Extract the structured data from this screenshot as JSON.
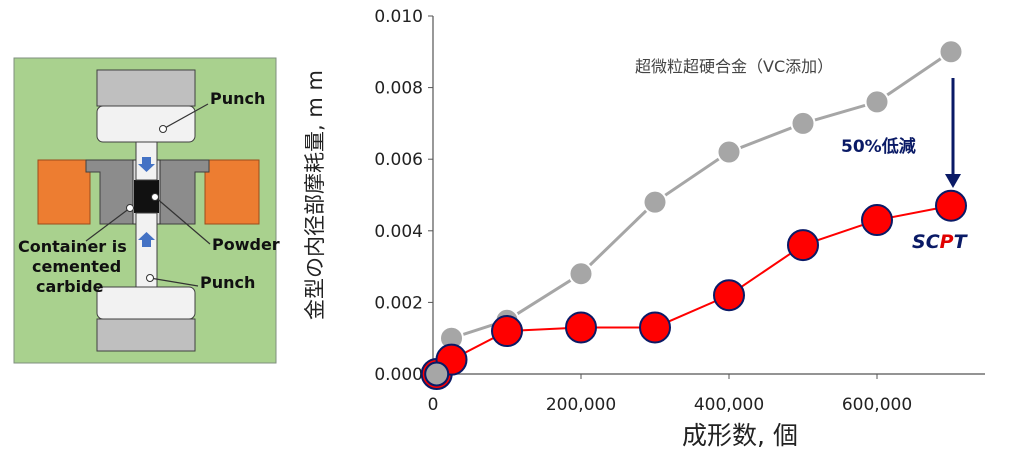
{
  "diagram": {
    "labels": {
      "punch_top": "Punch",
      "powder": "Powder",
      "container": [
        "Container is",
        "cemented",
        "carbide"
      ],
      "punch_bottom": "Punch"
    },
    "colors": {
      "background": "#a9d18e",
      "die_outer": "#ed7d31",
      "die_inner": "#808080",
      "punch": "#f2f2f2",
      "powder": "#111111",
      "arrow": "#4472c4"
    }
  },
  "chart_data": {
    "type": "scatter",
    "xlabel": "成形数, 個",
    "ylabel": "金型の内径部摩耗量, m m",
    "xlim": [
      0,
      750000
    ],
    "ylim": [
      0,
      0.01
    ],
    "x_ticks": [
      0,
      200000,
      400000,
      600000
    ],
    "x_tick_labels": [
      "0",
      "200,000",
      "400,000",
      "600,000"
    ],
    "y_ticks": [
      0,
      0.002,
      0.004,
      0.006,
      0.008,
      0.01
    ],
    "y_tick_labels": [
      "0.000",
      "0.002",
      "0.004",
      "0.006",
      "0.008",
      "0.010"
    ],
    "grid": false,
    "series": [
      {
        "name": "超微粒超硬合金（VC添加）",
        "color": "#a6a6a6",
        "x": [
          5000,
          25000,
          100000,
          200000,
          300000,
          400000,
          500000,
          600000,
          700000
        ],
        "y": [
          0.0,
          0.001,
          0.0015,
          0.0028,
          0.0048,
          0.0062,
          0.007,
          0.0076,
          0.009
        ]
      },
      {
        "name": "SCPT",
        "color": "#ff0000",
        "x": [
          5000,
          25000,
          100000,
          200000,
          300000,
          400000,
          500000,
          600000,
          700000
        ],
        "y": [
          0.0,
          0.0004,
          0.0012,
          0.0013,
          0.0013,
          0.0022,
          0.0036,
          0.0043,
          0.0047
        ]
      }
    ],
    "annotations": {
      "series_label": "超微粒超硬合金（VC添加）",
      "reduction_label": "50%低減",
      "scpt_label": {
        "s": "S",
        "c": "C",
        "p": "P",
        "t": "T"
      }
    }
  }
}
